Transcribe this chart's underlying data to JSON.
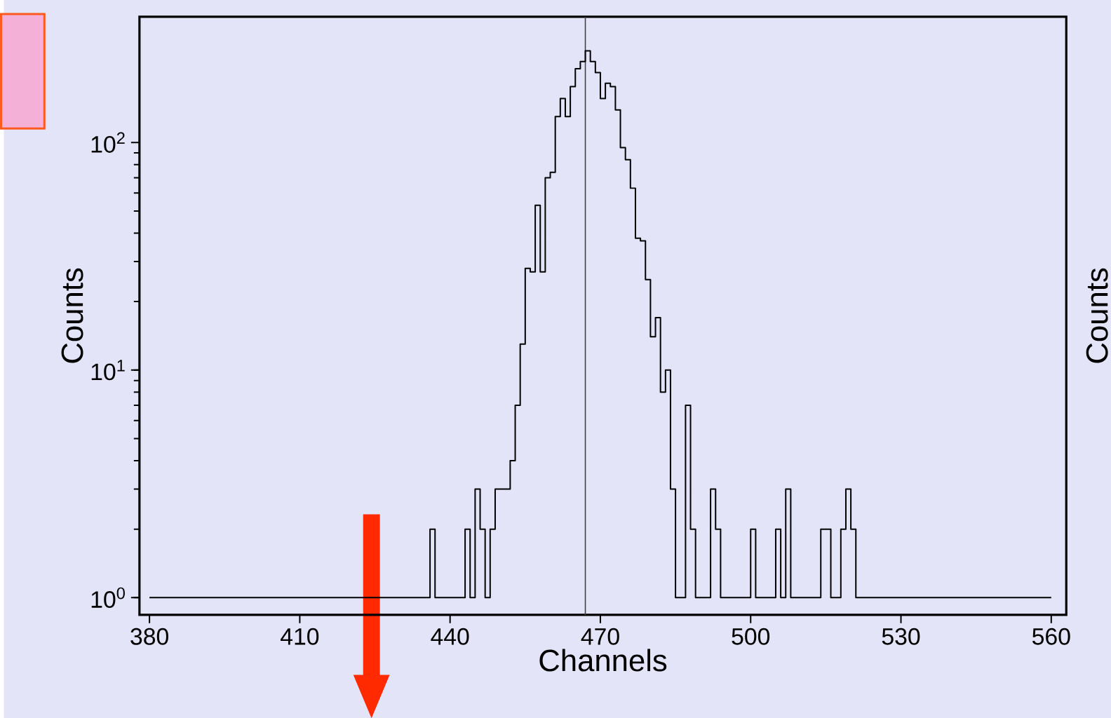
{
  "chart_data": {
    "type": "histogram",
    "xlabel": "Channels",
    "ylabel": "Counts",
    "y2label": "Counts",
    "color": "#000000",
    "log": true,
    "bins": [
      380,
      381,
      382,
      383,
      384,
      385,
      386,
      387,
      388,
      389,
      390,
      391,
      392,
      393,
      394,
      395,
      396,
      397,
      398,
      399,
      400,
      401,
      402,
      403,
      404,
      405,
      406,
      407,
      408,
      409,
      410,
      411,
      412,
      413,
      414,
      415,
      416,
      417,
      418,
      419,
      420,
      421,
      422,
      423,
      424,
      425,
      426,
      427,
      428,
      429,
      430,
      431,
      432,
      433,
      434,
      435,
      436,
      437,
      438,
      439,
      440,
      441,
      442,
      443,
      444,
      445,
      446,
      447,
      448,
      449,
      450,
      451,
      452,
      453,
      454,
      455,
      456,
      457,
      458,
      459,
      460,
      461,
      462,
      463,
      464,
      465,
      466,
      467,
      468,
      469,
      470,
      471,
      472,
      473,
      474,
      475,
      476,
      477,
      478,
      479,
      480,
      481,
      482,
      483,
      484,
      485,
      486,
      487,
      488,
      489,
      490,
      491,
      492,
      493,
      494,
      495,
      496,
      497,
      498,
      499,
      500,
      501,
      502,
      503,
      504,
      505,
      506,
      507,
      508,
      509,
      510,
      511,
      512,
      513,
      514,
      515,
      516,
      517,
      518,
      519,
      520,
      521,
      522,
      523,
      524,
      525,
      526,
      527,
      528,
      529,
      530,
      531,
      532,
      533,
      534,
      535,
      536,
      537,
      538,
      539,
      540,
      541,
      542,
      543,
      544,
      545,
      546,
      547,
      548,
      549,
      550,
      551,
      552,
      553,
      554,
      555,
      556,
      557,
      558,
      559,
      560
    ],
    "values": [
      1,
      1,
      1,
      1,
      1,
      1,
      1,
      1,
      1,
      1,
      1,
      1,
      1,
      1,
      1,
      1,
      1,
      1,
      1,
      1,
      1,
      1,
      1,
      1,
      1,
      1,
      1,
      1,
      1,
      1,
      1,
      1,
      1,
      1,
      1,
      1,
      1,
      1,
      1,
      1,
      1,
      1,
      1,
      1,
      1,
      1,
      1,
      1,
      1,
      1,
      1,
      1,
      1,
      1,
      1,
      1,
      2,
      1,
      1,
      1,
      1,
      1,
      1,
      2,
      1,
      3,
      2,
      1,
      2,
      3,
      3,
      3,
      4,
      7,
      13,
      28,
      27,
      53,
      27,
      70,
      74,
      130,
      156,
      130,
      176,
      211,
      227,
      253,
      227,
      203,
      156,
      182,
      176,
      139,
      95,
      84,
      63,
      38,
      37,
      25,
      14,
      17,
      8,
      10,
      3,
      1,
      1,
      7,
      2,
      1,
      1,
      1,
      3,
      2,
      1,
      1,
      1,
      1,
      1,
      1,
      2,
      1,
      1,
      1,
      1,
      2,
      1,
      3,
      1,
      1,
      1,
      1,
      1,
      1,
      2,
      2,
      1,
      1,
      2,
      3,
      2,
      1,
      1,
      1,
      1,
      1,
      1,
      1,
      1,
      1,
      1,
      1,
      1,
      1,
      1,
      1,
      1,
      1,
      1,
      1,
      1,
      1,
      1,
      1,
      1,
      1,
      1,
      1,
      1,
      1,
      1,
      1,
      1,
      1,
      1,
      1,
      1,
      1,
      1,
      1
    ],
    "xlim": [
      378,
      563
    ],
    "ylim": [
      0.84,
      357
    ],
    "xticks": [
      380,
      410,
      440,
      470,
      500,
      530,
      560
    ],
    "yticks": [
      {
        "value": 1,
        "label": "10$^{0}$"
      },
      {
        "value": 10,
        "label": "10$^{1}$"
      },
      {
        "value": 100,
        "label": "10$^{2}$"
      }
    ],
    "ref_lines": [
      {
        "axis": "x",
        "value": 467,
        "color": "#404040"
      }
    ]
  }
}
